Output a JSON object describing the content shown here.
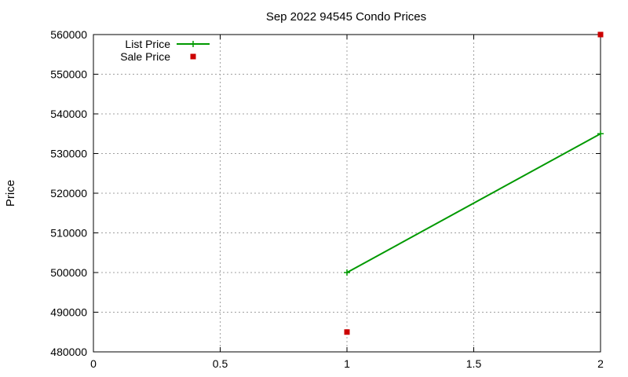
{
  "chart_data": {
    "type": "line",
    "title": "Sep 2022 94545 Condo Prices",
    "xlabel": "",
    "ylabel": "Price",
    "xlim": [
      0,
      2
    ],
    "ylim": [
      480000,
      560000
    ],
    "xticks": [
      0,
      0.5,
      1,
      1.5,
      2
    ],
    "xtick_labels": [
      "0",
      "0.5",
      "1",
      "1.5",
      "2"
    ],
    "yticks": [
      480000,
      490000,
      500000,
      510000,
      520000,
      530000,
      540000,
      550000,
      560000
    ],
    "ytick_labels": [
      "480000",
      "490000",
      "500000",
      "510000",
      "520000",
      "530000",
      "540000",
      "550000",
      "560000"
    ],
    "grid": true,
    "legend_position": "top-left",
    "series": [
      {
        "name": "List Price",
        "style": "line-points",
        "marker": "plus",
        "color": "#009900",
        "x": [
          1,
          2
        ],
        "y": [
          500000,
          535000
        ]
      },
      {
        "name": "Sale Price",
        "style": "points",
        "marker": "square",
        "color": "#cc0000",
        "x": [
          1,
          2
        ],
        "y": [
          485000,
          560000
        ]
      }
    ]
  }
}
